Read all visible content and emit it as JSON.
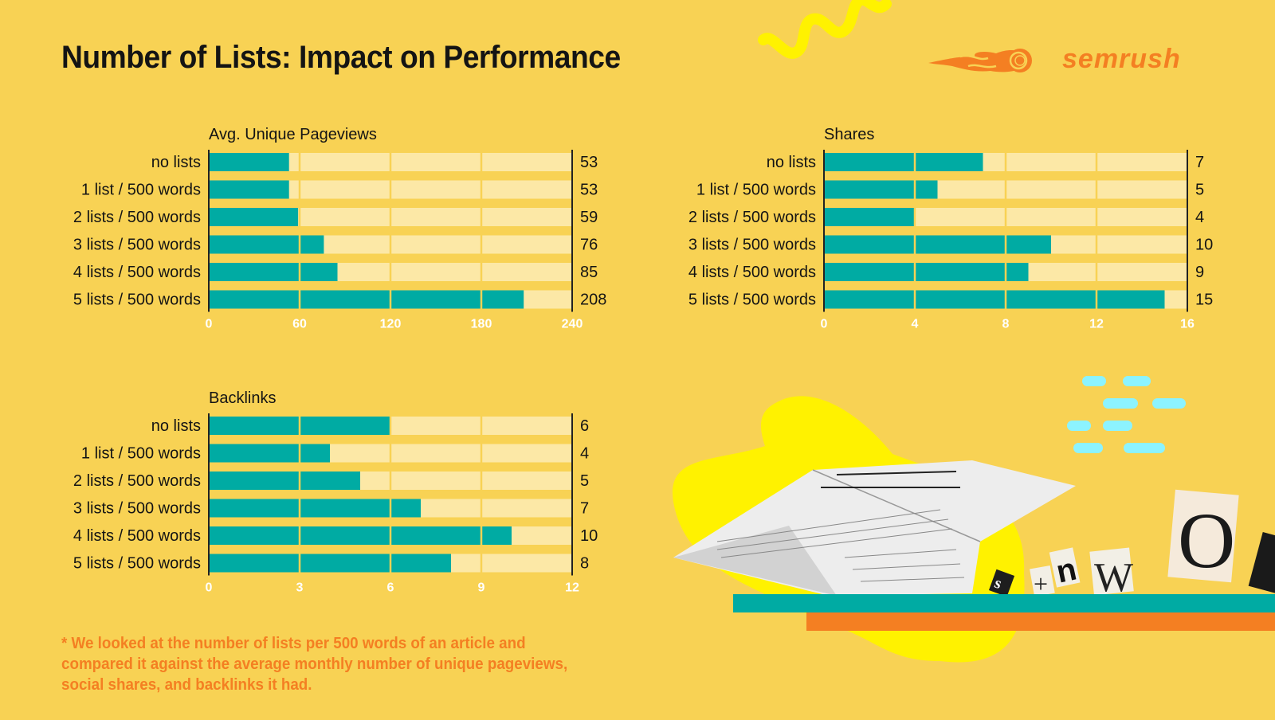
{
  "title": "Number of Lists: Impact on Performance",
  "logo": {
    "text": "semrush",
    "icon": "semrush-fireball-icon"
  },
  "colors": {
    "background": "#F8D254",
    "bar": "#00ABA3",
    "track": "#FCE8A6",
    "accent": "#F47F22",
    "text": "#141414",
    "tick": "#FFFFFF"
  },
  "footnote": "* We looked at the number of lists per 500 words of an article and compared it against the average monthly number of unique pageviews, social shares, and backlinks it had.",
  "chart_data": [
    {
      "type": "bar",
      "orientation": "horizontal",
      "title": "Avg. Unique Pageviews",
      "categories": [
        "no lists",
        "1 list / 500 words",
        "2 lists / 500 words",
        "3 lists / 500 words",
        "4 lists / 500 words",
        "5 lists / 500 words"
      ],
      "values": [
        53,
        53,
        59,
        76,
        85,
        208
      ],
      "xlim": [
        0,
        240
      ],
      "xticks": [
        0,
        60,
        120,
        180,
        240
      ],
      "grid": true
    },
    {
      "type": "bar",
      "orientation": "horizontal",
      "title": "Shares",
      "categories": [
        "no lists",
        "1 list / 500 words",
        "2 lists / 500 words",
        "3 lists / 500 words",
        "4 lists / 500 words",
        "5 lists / 500 words"
      ],
      "values": [
        7,
        5,
        4,
        10,
        9,
        15
      ],
      "xlim": [
        0,
        16
      ],
      "xticks": [
        0,
        4,
        8,
        12,
        16
      ],
      "grid": true
    },
    {
      "type": "bar",
      "orientation": "horizontal",
      "title": "Backlinks",
      "categories": [
        "no lists",
        "1 list / 500 words",
        "2 lists / 500 words",
        "3 lists / 500 words",
        "4 lists / 500 words",
        "5 lists / 500 words"
      ],
      "values": [
        6,
        4,
        5,
        7,
        10,
        8
      ],
      "xlim": [
        0,
        12
      ],
      "xticks": [
        0,
        3,
        6,
        9,
        12
      ],
      "grid": true
    }
  ]
}
